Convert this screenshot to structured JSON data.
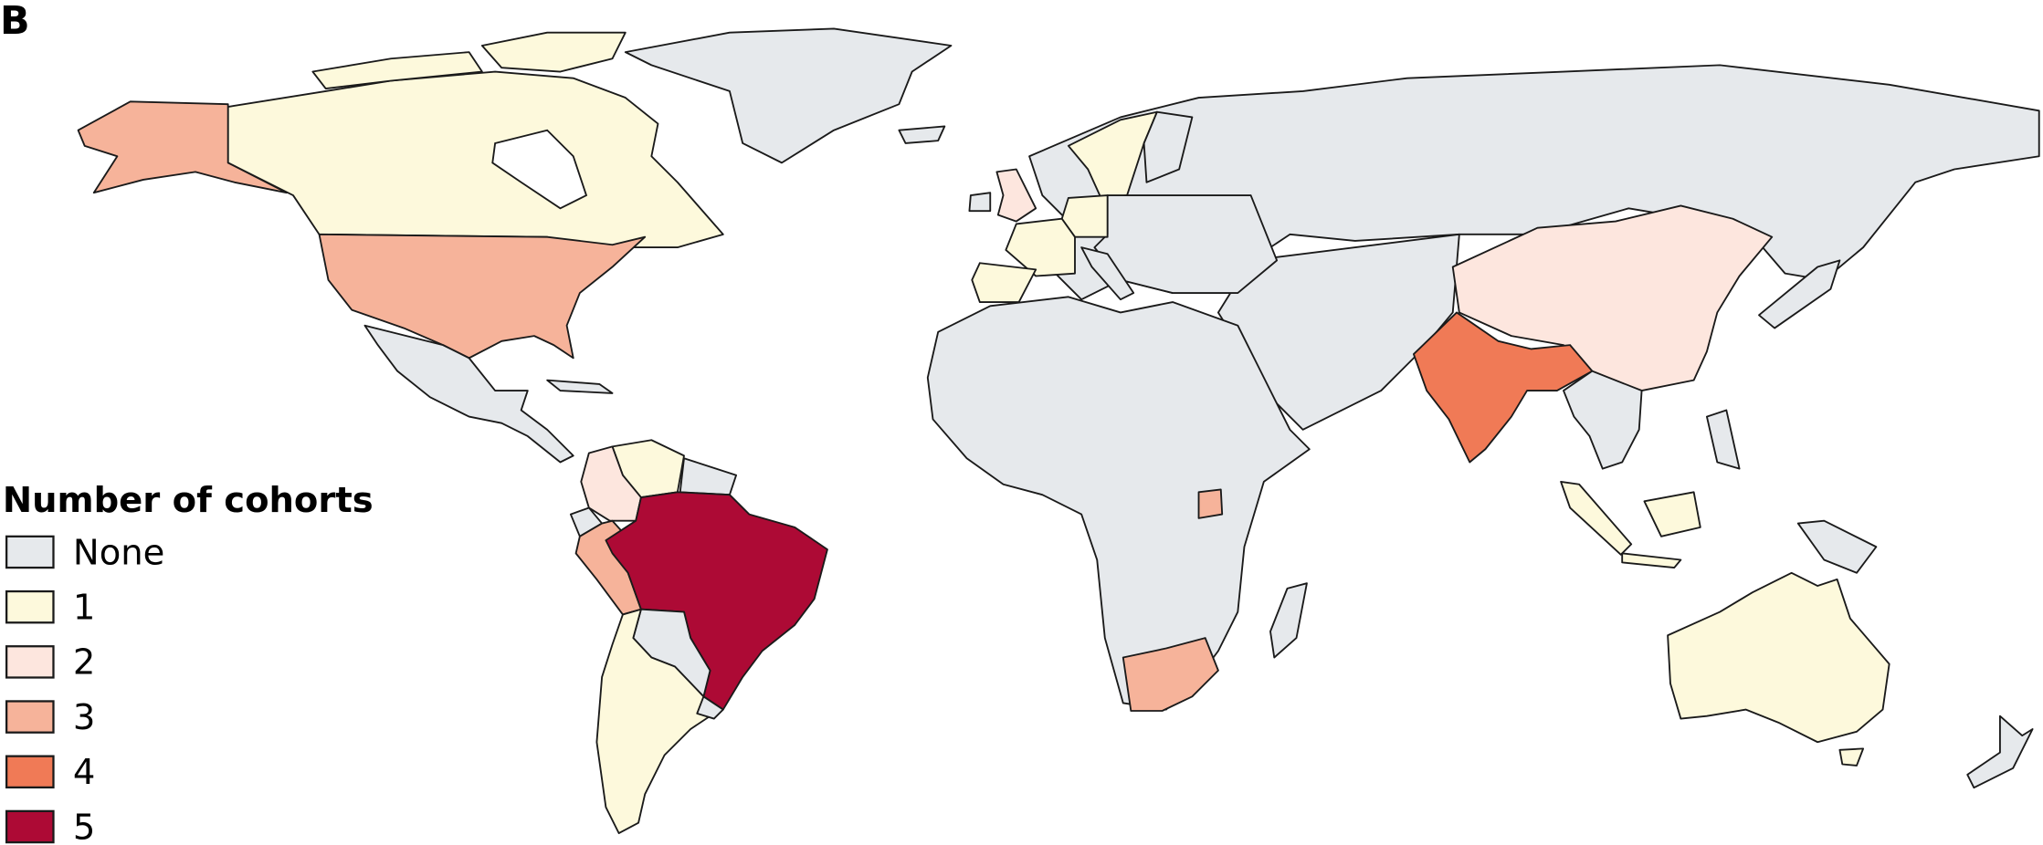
{
  "panel_label": "B",
  "legend": {
    "title": "Number of cohorts",
    "items": [
      {
        "label": "None",
        "color": "#e6e9ec"
      },
      {
        "label": "1",
        "color": "#fdf9dc"
      },
      {
        "label": "2",
        "color": "#fde6de"
      },
      {
        "label": "3",
        "color": "#f6b39a"
      },
      {
        "label": "4",
        "color": "#f07a56"
      },
      {
        "label": "5",
        "color": "#ad0a35"
      }
    ]
  }
}
